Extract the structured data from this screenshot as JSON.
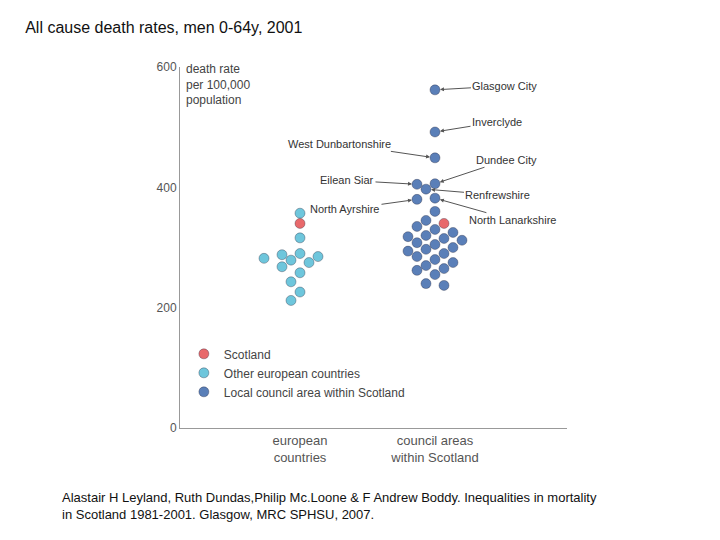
{
  "chart_data": {
    "type": "strip",
    "title": "All cause death rates, men 0-64y, 2001",
    "y_label": "death rate per 100,000 population",
    "categories": [
      "european countries",
      "council areas within Scotland"
    ],
    "series": [
      {
        "name": "Scotland",
        "color": "#e8696b",
        "values": [
          [
            340
          ],
          [
            340
          ]
        ]
      },
      {
        "name": "Other european countries",
        "color": "#6ec6dc",
        "values": [
          [
            357,
            316,
            290,
            288,
            285,
            282,
            279,
            275,
            268,
            258,
            243,
            226,
            212
          ],
          []
        ]
      },
      {
        "name": "Local council area within Scotland",
        "color": "#5a7fb8",
        "values": [
          [],
          [
            562,
            492,
            449,
            406,
            405,
            397,
            382,
            380,
            360,
            345,
            335,
            330,
            325,
            320,
            318,
            315,
            312,
            308,
            305,
            300,
            297,
            294,
            290,
            285,
            280,
            275,
            270,
            265,
            262,
            255,
            240,
            237
          ]
        ]
      }
    ],
    "ylim": [
      0,
      600
    ],
    "yticks": [
      0,
      200,
      400,
      600
    ],
    "grid": false,
    "legend": "lower left",
    "annotations": [
      {
        "text": "Glasgow City",
        "category": "council areas within Scotland",
        "value": 562
      },
      {
        "text": "Inverclyde",
        "category": "council areas within Scotland",
        "value": 492
      },
      {
        "text": "West Dunbartonshire",
        "category": "council areas within Scotland",
        "value": 449
      },
      {
        "text": "Dundee City",
        "category": "council areas within Scotland",
        "value": 406
      },
      {
        "text": "Eilean Siar",
        "category": "council areas within Scotland",
        "value": 405
      },
      {
        "text": "Renfrewshire",
        "category": "council areas within Scotland",
        "value": 397
      },
      {
        "text": "North Ayrshire",
        "category": "council areas within Scotland",
        "value": 380
      },
      {
        "text": "North Lanarkshire",
        "category": "council areas within Scotland",
        "value": 382
      }
    ],
    "source": [
      "Alastair H Leyland, Ruth Dundas,Philip Mc.Loone & F Andrew Boddy. Inequalities in mortality",
      "in Scotland 1981-2001. Glasgow, MRC SPHSU, 2007."
    ]
  }
}
